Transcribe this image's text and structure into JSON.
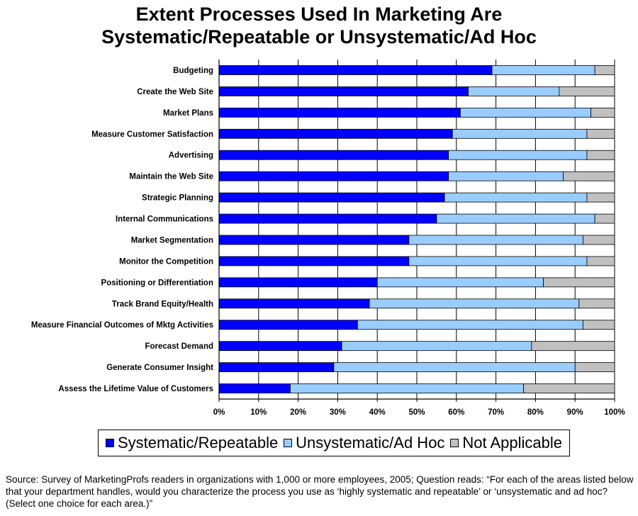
{
  "title_line1": "Extent Processes Used In Marketing Are",
  "title_line2": "Systematic/Repeatable or Unsystematic/Ad Hoc",
  "source": "Source:  Survey of MarketingProfs readers in organizations with 1,000 or more employees, 2005; Question reads: “For each of the areas listed below that your department handles, would you characterize the process you use as ‘highly systematic and repeatable’ or ‘unsystematic and ad hoc? (Select one choice for each area.)”",
  "colors": {
    "systematic": "#0000FF",
    "unsystematic": "#99CCFF",
    "not_applicable": "#C0C0C0",
    "gridline": "#000000"
  },
  "chart_data": {
    "type": "bar",
    "orientation": "horizontal",
    "stacked": "percent",
    "title": "Extent Processes Used In Marketing Are Systematic/Repeatable or Unsystematic/Ad Hoc",
    "xlabel": "",
    "ylabel": "",
    "xlim": [
      0,
      100
    ],
    "x_ticks": [
      "0%",
      "10%",
      "20%",
      "30%",
      "40%",
      "50%",
      "60%",
      "70%",
      "80%",
      "90%",
      "100%"
    ],
    "grid": "vertical",
    "legend_position": "bottom",
    "categories": [
      "Budgeting",
      "Create the Web Site",
      "Market Plans",
      "Measure Customer Satisfaction",
      "Advertising",
      "Maintain the Web Site",
      "Strategic Planning",
      "Internal Communications",
      "Market Segmentation",
      "Monitor the Competition",
      "Positioning or Differentiation",
      "Track Brand Equity/Health",
      "Measure Financial Outcomes of Mktg Activities",
      "Forecast Demand",
      "Generate Consumer Insight",
      "Assess the Lifetime Value of Customers"
    ],
    "series": [
      {
        "name": "Systematic/Repeatable",
        "values": [
          69,
          63,
          61,
          59,
          58,
          58,
          57,
          55,
          48,
          48,
          40,
          38,
          35,
          31,
          29,
          18
        ]
      },
      {
        "name": "Unsystematic/Ad Hoc",
        "values": [
          26,
          23,
          33,
          34,
          35,
          29,
          36,
          40,
          44,
          45,
          42,
          53,
          57,
          48,
          61,
          59
        ]
      },
      {
        "name": "Not Applicable",
        "values": [
          5,
          14,
          6,
          7,
          7,
          13,
          7,
          5,
          8,
          7,
          18,
          9,
          8,
          21,
          10,
          23
        ]
      }
    ]
  }
}
